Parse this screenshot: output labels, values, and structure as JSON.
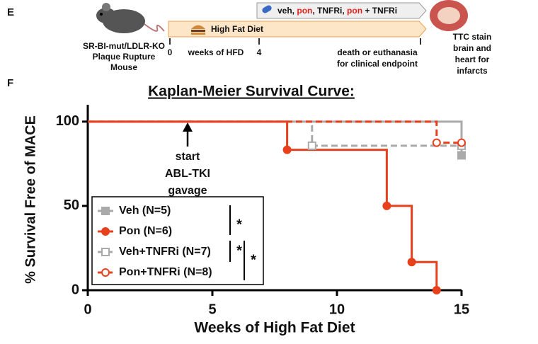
{
  "panel_labels": [
    "E",
    "F"
  ],
  "schematic": {
    "mouse_label": [
      "SR-BI-mut/LDLR-KO",
      "Plaque Rupture",
      "Mouse"
    ],
    "treatment": [
      "veh, ",
      "pon",
      ", TNFRi, ",
      "pon",
      " + TNFRi"
    ],
    "diet": "High Fat Diet",
    "timeline": {
      "start": "0",
      "middle_label": "weeks of HFD",
      "week4": "4",
      "end_label": [
        "death or euthanasia",
        "for clinical endpoint"
      ]
    },
    "outcome": [
      "TTC stain",
      "brain and",
      "heart for",
      "infarcts"
    ]
  },
  "chart_data": {
    "type": "line",
    "title": "Kaplan-Meier Survival Curve:",
    "xlabel": "Weeks of High Fat Diet",
    "ylabel": "% Survival Free of MACE",
    "xlim": [
      0,
      15
    ],
    "xticks": [
      0,
      5,
      10,
      15
    ],
    "ylim": [
      0,
      110
    ],
    "yticks": [
      0,
      50,
      100
    ],
    "legend": "lower left",
    "series": [
      {
        "name": "Veh (N=5)",
        "color": "#aaaaaa",
        "dashed": false,
        "marker": "square",
        "filled": true,
        "x": [
          0,
          15,
          15
        ],
        "values": [
          100,
          100,
          80
        ]
      },
      {
        "name": "Pon (N=6)",
        "color": "#e8401c",
        "dashed": false,
        "marker": "circle",
        "filled": true,
        "x": [
          0,
          8,
          8,
          12,
          12,
          13,
          13,
          14,
          14
        ],
        "values": [
          100,
          100,
          83.3,
          83.3,
          50,
          50,
          16.7,
          16.7,
          0
        ]
      },
      {
        "name": "Veh+TNFRi (N=7)",
        "color": "#aaaaaa",
        "dashed": true,
        "marker": "square",
        "filled": false,
        "x": [
          0,
          9,
          9,
          15
        ],
        "values": [
          100,
          100,
          85.7,
          85.7
        ]
      },
      {
        "name": "Pon+TNFRi (N=8)",
        "color": "#e8401c",
        "dashed": true,
        "marker": "circle",
        "filled": false,
        "x": [
          0,
          14,
          14,
          15
        ],
        "values": [
          100,
          100,
          87.5,
          87.5
        ]
      }
    ],
    "annotation": [
      "start",
      "ABL-TKI",
      "gavage"
    ],
    "significance": [
      "*",
      "*",
      "*"
    ]
  }
}
